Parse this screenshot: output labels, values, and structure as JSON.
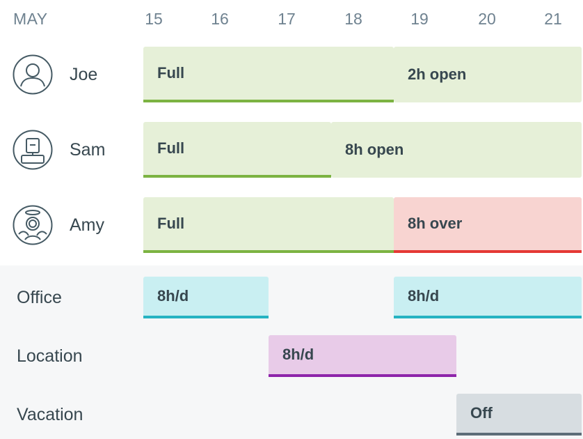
{
  "header": {
    "month": "MAY",
    "days": [
      "15",
      "16",
      "17",
      "18",
      "19",
      "20",
      "21"
    ]
  },
  "people": [
    {
      "name": "Joe",
      "avatar_icon": "person-icon",
      "bars": [
        {
          "label": "Full",
          "style": "complete"
        },
        {
          "label": "2h open",
          "style": "open"
        }
      ]
    },
    {
      "name": "Sam",
      "avatar_icon": "robot-icon",
      "bars": [
        {
          "label": "Full",
          "style": "complete"
        },
        {
          "label": "8h open",
          "style": "open"
        }
      ]
    },
    {
      "name": "Amy",
      "avatar_icon": "angel-icon",
      "bars": [
        {
          "label": "Full",
          "style": "complete"
        },
        {
          "label": "8h over",
          "style": "over"
        }
      ]
    }
  ],
  "categories": [
    {
      "name": "Office",
      "bars": [
        {
          "label": "8h/d"
        },
        {
          "label": "8h/d"
        }
      ]
    },
    {
      "name": "Location",
      "bars": [
        {
          "label": "8h/d"
        }
      ]
    },
    {
      "name": "Vacation",
      "bars": [
        {
          "label": "Off"
        }
      ]
    }
  ],
  "colors": {
    "full": "#e6f0d8",
    "full_accent": "#7cb342",
    "over": "#f8d4d1",
    "over_accent": "#e53935",
    "office": "#c9eff2",
    "office_accent": "#26b3c2",
    "location": "#e8cbe8",
    "location_accent": "#8e24aa",
    "vacation": "#d7dde1",
    "vacation_accent": "#5d6d78"
  }
}
